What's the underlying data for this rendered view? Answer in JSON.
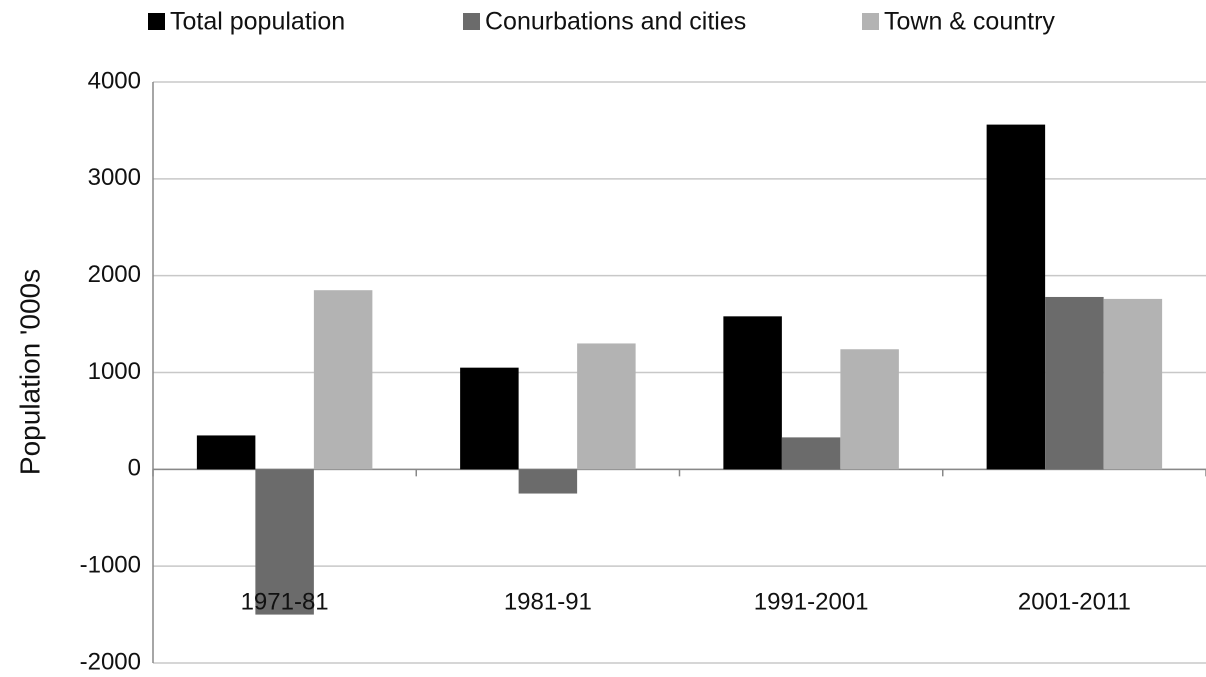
{
  "chart_data": {
    "type": "bar",
    "y_label": "Population '000s",
    "categories": [
      "1971-81",
      "1981-91",
      "1991-2001",
      "2001-2011"
    ],
    "series": [
      {
        "name": "Total population",
        "color": "#000000",
        "values": [
          350,
          1050,
          1580,
          3560
        ]
      },
      {
        "name": "Conurbations and cities",
        "color": "#6b6b6b",
        "values": [
          -1500,
          -250,
          330,
          1780
        ]
      },
      {
        "name": "Town & country",
        "color": "#b3b3b3",
        "values": [
          1850,
          1300,
          1240,
          1760
        ]
      }
    ],
    "ylim": [
      -2000,
      4000
    ],
    "yticks": [
      -2000,
      -1000,
      0,
      1000,
      2000,
      3000,
      4000
    ],
    "grid": true
  }
}
